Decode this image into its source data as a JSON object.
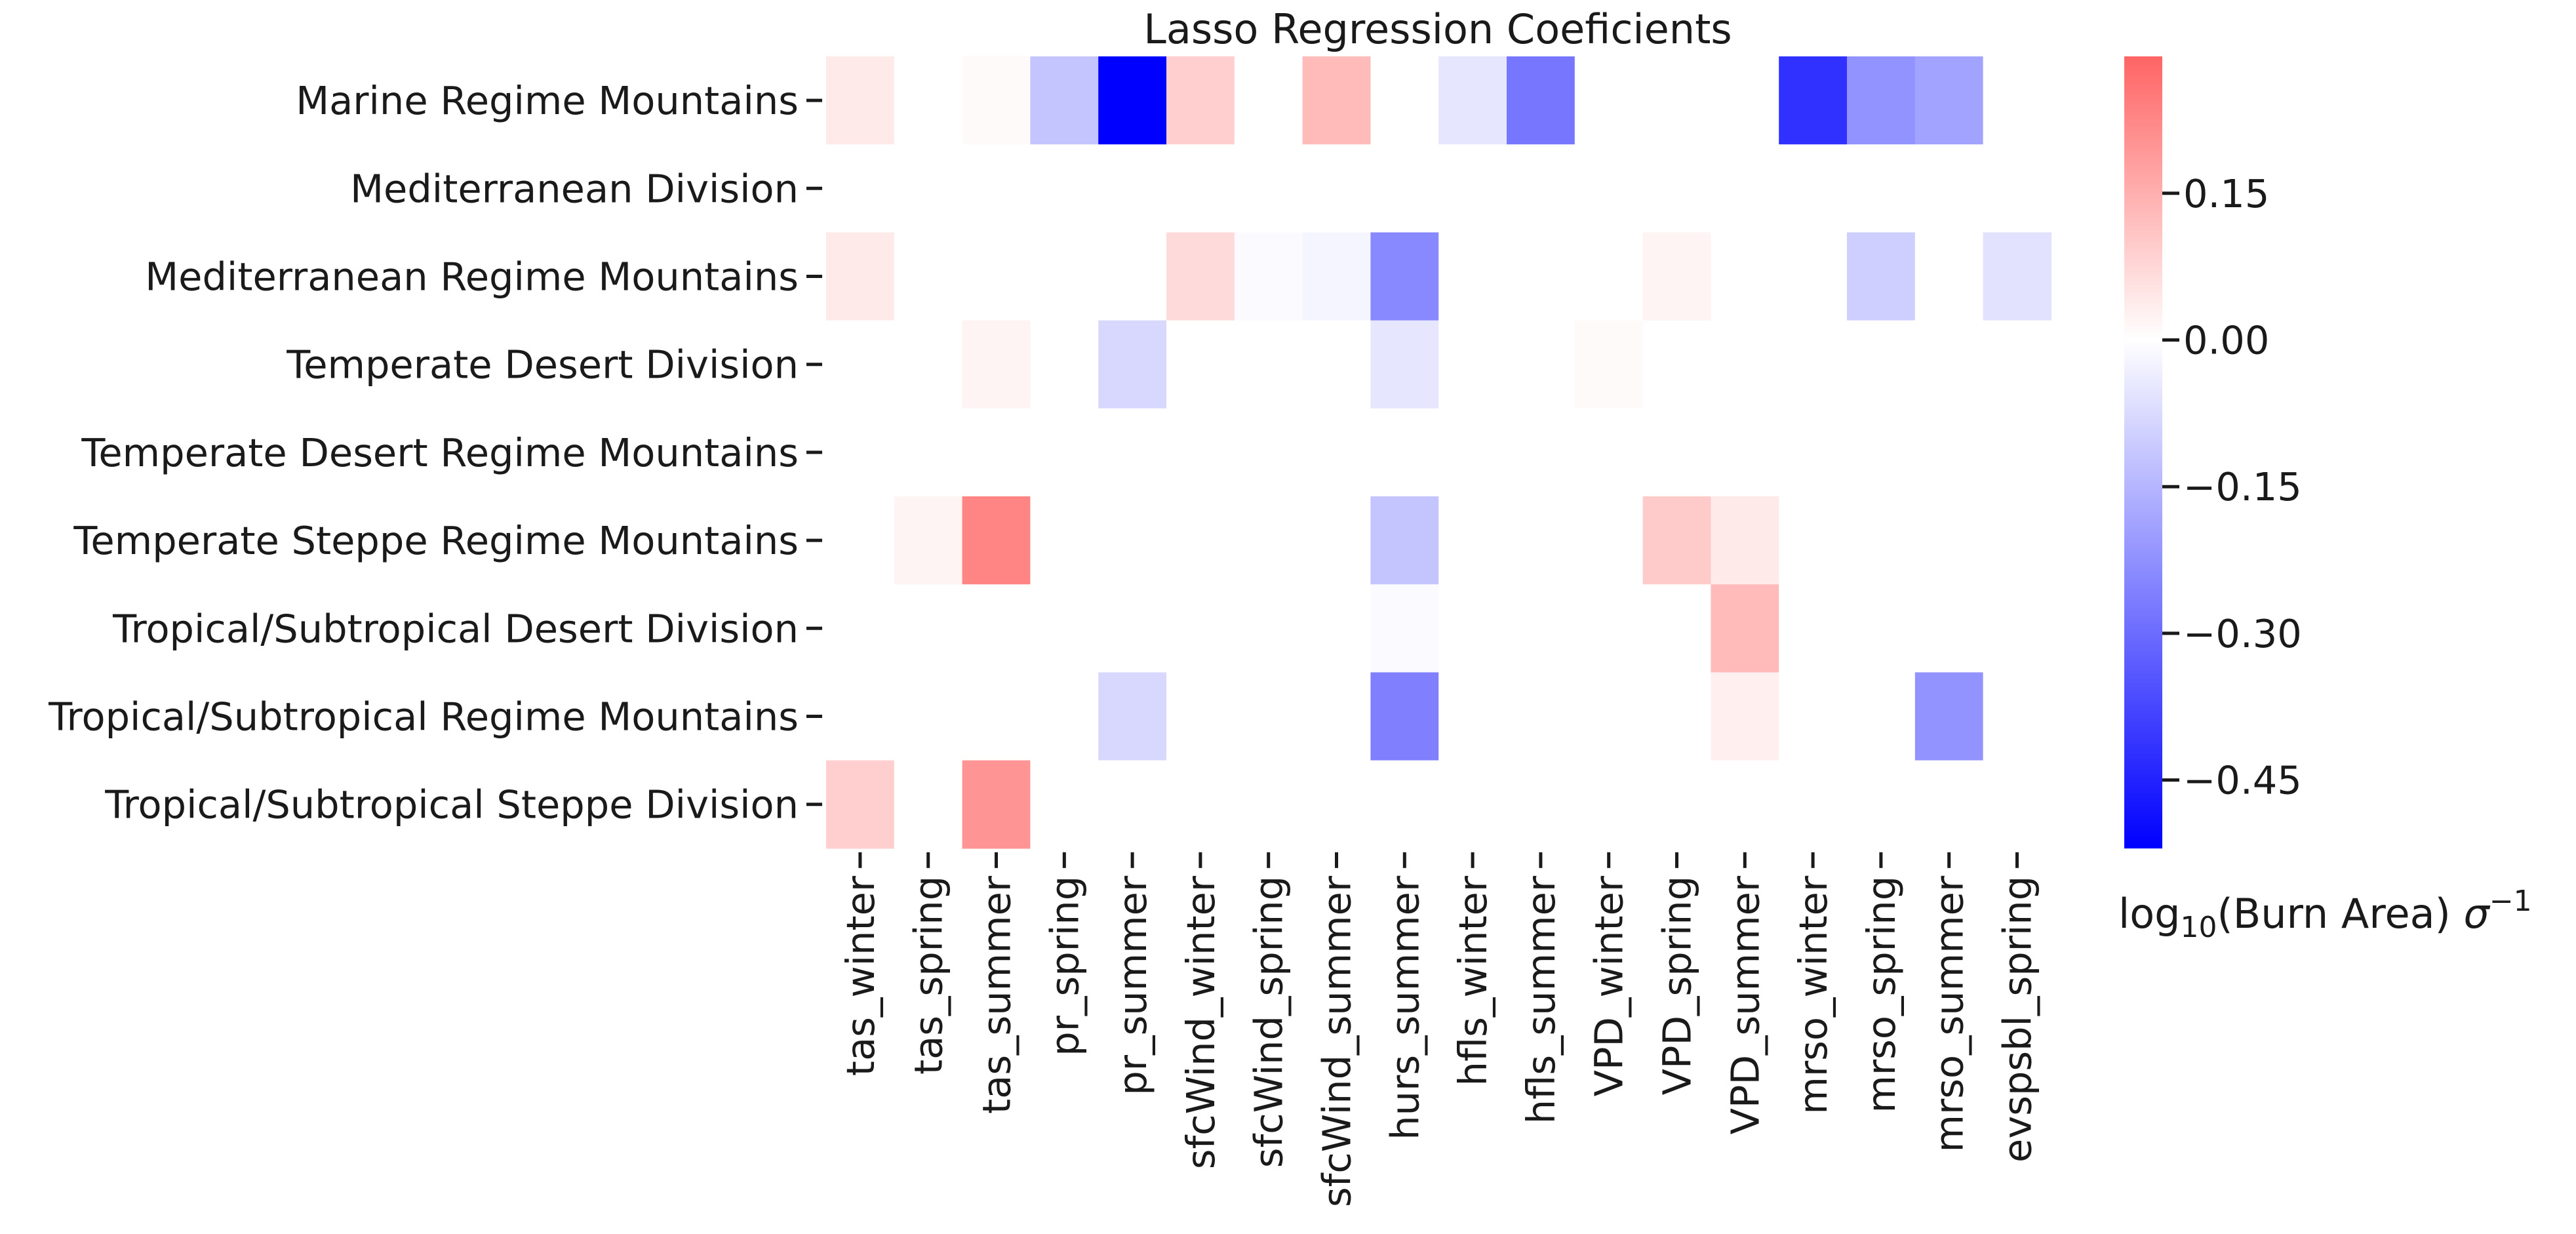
{
  "chart_data": {
    "type": "heatmap",
    "title": "Lasso Regression Coeficients",
    "rows": [
      "Marine Regime Mountains",
      "Mediterranean Division",
      "Mediterranean Regime Mountains",
      "Temperate Desert Division",
      "Temperate Desert Regime Mountains",
      "Temperate Steppe Regime Mountains",
      "Tropical/Subtropical Desert Division",
      "Tropical/Subtropical Regime Mountains",
      "Tropical/Subtropical Steppe Division"
    ],
    "columns": [
      "tas_winter",
      "tas_spring",
      "tas_summer",
      "pr_spring",
      "pr_summer",
      "sfcWind_winter",
      "sfcWind_spring",
      "sfcWind_summer",
      "hurs_summer",
      "hfls_winter",
      "hfls_summer",
      "VPD_winter",
      "VPD_spring",
      "VPD_summer",
      "mrso_winter",
      "mrso_spring",
      "mrso_summer",
      "evspsbl_spring"
    ],
    "values": [
      [
        0.04,
        0,
        0.01,
        -0.12,
        -0.58,
        0.09,
        0,
        0.13,
        0,
        -0.05,
        -0.28,
        0,
        0,
        0,
        -0.42,
        -0.22,
        -0.19,
        0
      ],
      [
        0,
        0,
        0,
        0,
        0,
        0,
        0,
        0,
        0,
        0,
        0,
        0,
        0,
        0,
        0,
        0,
        0,
        0
      ],
      [
        0.04,
        0,
        0,
        0,
        0,
        0.07,
        -0.01,
        -0.02,
        -0.24,
        0,
        0,
        0,
        0.02,
        0,
        0,
        -0.1,
        0,
        -0.06
      ],
      [
        0,
        0,
        0.02,
        0,
        -0.08,
        0,
        0,
        0,
        -0.05,
        0,
        0,
        0.01,
        0,
        0,
        0,
        0,
        0,
        0
      ],
      [
        0,
        0,
        0,
        0,
        0,
        0,
        0,
        0,
        0,
        0,
        0,
        0,
        0,
        0,
        0,
        0,
        0,
        0
      ],
      [
        0,
        0.02,
        0.23,
        0,
        0,
        0,
        0,
        0,
        -0.12,
        0,
        0,
        0,
        0.1,
        0.04,
        0,
        0,
        0,
        0
      ],
      [
        0,
        0,
        0,
        0,
        0,
        0,
        0,
        0,
        -0.01,
        0,
        0,
        0,
        0,
        0.13,
        0,
        0,
        0,
        0
      ],
      [
        0,
        0,
        0,
        0,
        -0.08,
        0,
        0,
        0,
        -0.26,
        0,
        0,
        0,
        0,
        0.03,
        0,
        0,
        -0.22,
        0
      ],
      [
        0.09,
        0,
        0.2,
        0,
        0,
        0,
        0,
        0,
        0,
        0,
        0,
        0,
        0,
        0,
        0,
        0,
        0,
        0
      ]
    ],
    "colormap": {
      "min_color": "#0000ff",
      "mid_color": "#ffffff",
      "max_color": "#ff6464"
    },
    "color_range": [
      -0.52,
      0.29
    ],
    "colorbar": {
      "ticks": [
        0.15,
        0.0,
        -0.15,
        -0.3,
        -0.45
      ],
      "tick_labels": [
        "0.15",
        "0.00",
        "−0.15",
        "−0.30",
        "−0.45"
      ],
      "label_prefix": "log",
      "label_subscript": "10",
      "label_mid": "(Burn Area) ",
      "label_sigma": "σ",
      "label_superscript": "−1"
    }
  }
}
